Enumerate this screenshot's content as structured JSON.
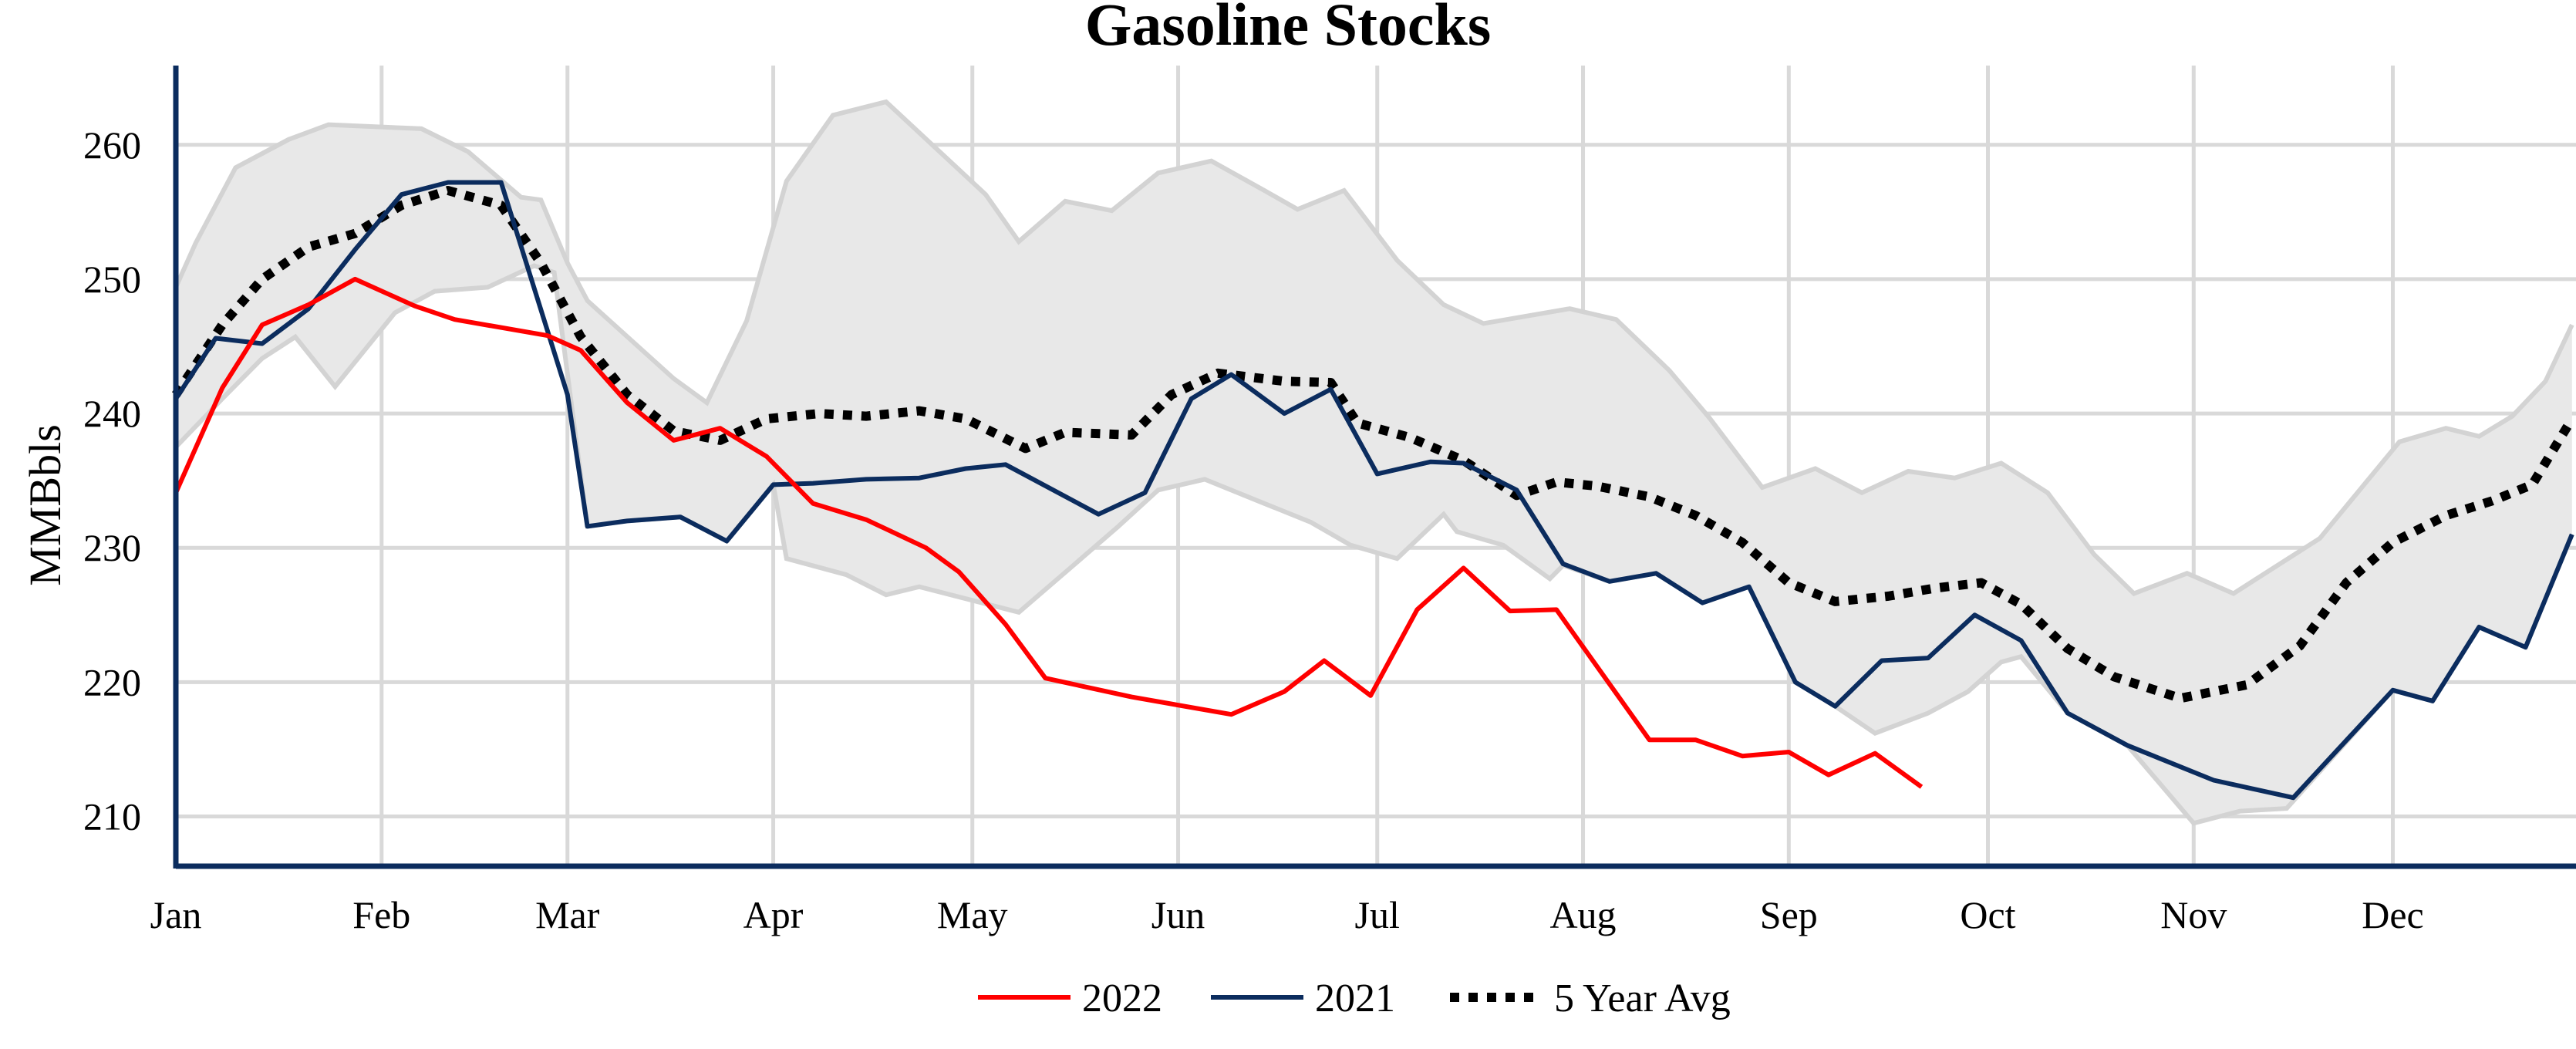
{
  "chart_data": {
    "type": "line",
    "title": "Gasoline Stocks",
    "xlabel": "",
    "ylabel": "MMBbls",
    "x_ticks": [
      "Jan",
      "Feb",
      "Mar",
      "Apr",
      "May",
      "Jun",
      "Jul",
      "Aug",
      "Sep",
      "Oct",
      "Nov",
      "Dec"
    ],
    "y_ticks": [
      210,
      220,
      230,
      240,
      250,
      260
    ],
    "ylim": [
      206.3,
      265.9
    ],
    "xlim": [
      "01-01",
      "12-28"
    ],
    "grid": true,
    "legend_position": "bottom",
    "colors": {
      "2022": "#ff0000",
      "2021": "#0b2c5e",
      "avg": "#000000",
      "band_fill": "#e8e8e8",
      "band_edge": "#d3d3d3",
      "grid": "#d9d9d9",
      "axis": "#0b2c5e"
    },
    "range_band": {
      "upper": [
        [
          "01-01",
          249.4
        ],
        [
          "01-04",
          252.7
        ],
        [
          "01-10",
          258.3
        ],
        [
          "01-18",
          260.4
        ],
        [
          "01-24",
          261.5
        ],
        [
          "02-07",
          261.2
        ],
        [
          "02-14",
          259.5
        ],
        [
          "02-22",
          256.1
        ],
        [
          "02-25",
          255.9
        ],
        [
          "03-01",
          251.2
        ],
        [
          "03-04",
          248.4
        ],
        [
          "03-17",
          242.6
        ],
        [
          "03-22",
          240.8
        ],
        [
          "03-28",
          246.9
        ],
        [
          "04-03",
          257.3
        ],
        [
          "04-10",
          262.2
        ],
        [
          "04-18",
          263.2
        ],
        [
          "05-03",
          256.3
        ],
        [
          "05-08",
          252.8
        ],
        [
          "05-15",
          255.8
        ],
        [
          "05-22",
          255.1
        ],
        [
          "05-29",
          257.9
        ],
        [
          "06-06",
          258.8
        ],
        [
          "06-14",
          256.6
        ],
        [
          "06-19",
          255.2
        ],
        [
          "06-26",
          256.6
        ],
        [
          "07-04",
          251.4
        ],
        [
          "07-11",
          248.1
        ],
        [
          "07-17",
          246.7
        ],
        [
          "07-30",
          247.8
        ],
        [
          "08-06",
          247.0
        ],
        [
          "08-14",
          243.2
        ],
        [
          "08-20",
          239.7
        ],
        [
          "08-28",
          234.5
        ],
        [
          "09-05",
          235.9
        ],
        [
          "09-12",
          234.1
        ],
        [
          "09-19",
          235.7
        ],
        [
          "09-26",
          235.2
        ],
        [
          "10-03",
          236.3
        ],
        [
          "10-10",
          234.1
        ],
        [
          "10-17",
          229.5
        ],
        [
          "10-23",
          226.6
        ],
        [
          "10-31",
          228.1
        ],
        [
          "11-07",
          226.6
        ],
        [
          "11-20",
          230.7
        ],
        [
          "12-02",
          237.9
        ],
        [
          "12-09",
          238.9
        ],
        [
          "12-14",
          238.3
        ],
        [
          "12-19",
          239.8
        ],
        [
          "12-24",
          242.4
        ],
        [
          "12-28",
          246.6
        ]
      ],
      "lower": [
        [
          "01-01",
          237.5
        ],
        [
          "01-08",
          241.1
        ],
        [
          "01-14",
          244.1
        ],
        [
          "01-19",
          245.7
        ],
        [
          "01-25",
          242.0
        ],
        [
          "02-03",
          247.5
        ],
        [
          "02-09",
          249.1
        ],
        [
          "02-17",
          249.4
        ],
        [
          "02-24",
          251.0
        ],
        [
          "02-27",
          250.5
        ],
        [
          "03-04",
          231.6
        ],
        [
          "03-10",
          232.0
        ],
        [
          "03-18",
          232.3
        ],
        [
          "03-25",
          230.5
        ],
        [
          "04-01",
          234.7
        ],
        [
          "04-03",
          229.2
        ],
        [
          "04-12",
          228.0
        ],
        [
          "04-18",
          226.5
        ],
        [
          "04-23",
          227.1
        ],
        [
          "05-08",
          225.2
        ],
        [
          "05-16",
          228.6
        ],
        [
          "05-23",
          231.6
        ],
        [
          "05-29",
          234.3
        ],
        [
          "06-05",
          235.1
        ],
        [
          "06-13",
          233.5
        ],
        [
          "06-21",
          231.9
        ],
        [
          "06-27",
          230.2
        ],
        [
          "07-04",
          229.2
        ],
        [
          "07-11",
          232.5
        ],
        [
          "07-13",
          231.2
        ],
        [
          "07-20",
          230.2
        ],
        [
          "07-27",
          227.7
        ],
        [
          "07-29",
          228.7
        ],
        [
          "08-05",
          227.5
        ],
        [
          "08-12",
          228.1
        ],
        [
          "08-19",
          225.9
        ],
        [
          "08-26",
          227.1
        ],
        [
          "09-02",
          220.0
        ],
        [
          "09-08",
          218.2
        ],
        [
          "09-14",
          216.2
        ],
        [
          "09-22",
          217.7
        ],
        [
          "09-28",
          219.3
        ],
        [
          "10-03",
          221.5
        ],
        [
          "10-06",
          221.9
        ],
        [
          "10-13",
          217.7
        ],
        [
          "10-22",
          215.3
        ],
        [
          "11-01",
          209.5
        ],
        [
          "11-08",
          210.4
        ],
        [
          "11-15",
          210.6
        ],
        [
          "12-01",
          219.4
        ],
        [
          "12-07",
          218.6
        ],
        [
          "12-14",
          224.1
        ],
        [
          "12-21",
          222.6
        ],
        [
          "12-28",
          231.0
        ]
      ]
    },
    "series": [
      {
        "name": "2022",
        "style": "solid",
        "points": [
          [
            "01-01",
            234.1
          ],
          [
            "01-08",
            241.9
          ],
          [
            "01-14",
            246.6
          ],
          [
            "01-21",
            248.1
          ],
          [
            "01-28",
            250.0
          ],
          [
            "02-06",
            248.0
          ],
          [
            "02-12",
            247.0
          ],
          [
            "02-26",
            245.8
          ],
          [
            "03-03",
            244.7
          ],
          [
            "03-10",
            240.8
          ],
          [
            "03-17",
            238.0
          ],
          [
            "03-24",
            238.9
          ],
          [
            "03-31",
            236.8
          ],
          [
            "04-07",
            233.3
          ],
          [
            "04-15",
            232.1
          ],
          [
            "04-24",
            230.0
          ],
          [
            "04-29",
            228.2
          ],
          [
            "05-06",
            224.3
          ],
          [
            "05-12",
            220.3
          ],
          [
            "05-25",
            218.9
          ],
          [
            "06-09",
            217.6
          ],
          [
            "06-17",
            219.3
          ],
          [
            "06-23",
            221.6
          ],
          [
            "06-30",
            219.0
          ],
          [
            "07-07",
            225.4
          ],
          [
            "07-14",
            228.5
          ],
          [
            "07-21",
            225.3
          ],
          [
            "07-28",
            225.4
          ],
          [
            "08-11",
            215.7
          ],
          [
            "08-18",
            215.7
          ],
          [
            "08-25",
            214.5
          ],
          [
            "09-01",
            214.8
          ],
          [
            "09-07",
            213.1
          ],
          [
            "09-14",
            214.7
          ],
          [
            "09-21",
            212.2
          ]
        ]
      },
      {
        "name": "2021",
        "style": "solid",
        "points": [
          [
            "01-01",
            241.1
          ],
          [
            "01-07",
            245.6
          ],
          [
            "01-14",
            245.2
          ],
          [
            "01-21",
            247.8
          ],
          [
            "01-28",
            252.2
          ],
          [
            "02-04",
            256.3
          ],
          [
            "02-11",
            257.2
          ],
          [
            "02-19",
            257.2
          ],
          [
            "03-01",
            241.4
          ],
          [
            "03-04",
            231.6
          ],
          [
            "03-10",
            232.0
          ],
          [
            "03-18",
            232.3
          ],
          [
            "03-25",
            230.5
          ],
          [
            "04-01",
            234.7
          ],
          [
            "04-07",
            234.8
          ],
          [
            "04-15",
            235.1
          ],
          [
            "04-23",
            235.2
          ],
          [
            "04-30",
            235.9
          ],
          [
            "05-06",
            236.2
          ],
          [
            "05-20",
            232.5
          ],
          [
            "05-27",
            234.1
          ],
          [
            "06-03",
            241.1
          ],
          [
            "06-09",
            242.9
          ],
          [
            "06-17",
            240.0
          ],
          [
            "06-24",
            241.8
          ],
          [
            "07-01",
            235.5
          ],
          [
            "07-09",
            236.4
          ],
          [
            "07-14",
            236.3
          ],
          [
            "07-22",
            234.3
          ],
          [
            "07-29",
            228.8
          ],
          [
            "08-05",
            227.5
          ],
          [
            "08-12",
            228.1
          ],
          [
            "08-19",
            225.9
          ],
          [
            "08-26",
            227.1
          ],
          [
            "09-02",
            220.0
          ],
          [
            "09-08",
            218.2
          ],
          [
            "09-15",
            221.6
          ],
          [
            "09-22",
            221.8
          ],
          [
            "09-29",
            225.0
          ],
          [
            "10-06",
            223.1
          ],
          [
            "10-13",
            217.7
          ],
          [
            "10-22",
            215.3
          ],
          [
            "11-04",
            212.7
          ],
          [
            "11-16",
            211.4
          ],
          [
            "12-01",
            219.4
          ],
          [
            "12-07",
            218.6
          ],
          [
            "12-14",
            224.1
          ],
          [
            "12-21",
            222.6
          ],
          [
            "12-28",
            231.0
          ]
        ]
      },
      {
        "name": "5 Year Avg",
        "style": "dotted",
        "points": [
          [
            "01-01",
            241.4
          ],
          [
            "01-08",
            246.6
          ],
          [
            "01-14",
            250.0
          ],
          [
            "01-21",
            252.4
          ],
          [
            "01-28",
            253.4
          ],
          [
            "02-04",
            255.5
          ],
          [
            "02-11",
            256.6
          ],
          [
            "02-19",
            255.5
          ],
          [
            "02-25",
            251.2
          ],
          [
            "03-03",
            245.7
          ],
          [
            "03-10",
            241.4
          ],
          [
            "03-17",
            238.7
          ],
          [
            "03-24",
            238.0
          ],
          [
            "03-31",
            239.6
          ],
          [
            "04-08",
            240.0
          ],
          [
            "04-15",
            239.8
          ],
          [
            "04-23",
            240.2
          ],
          [
            "04-30",
            239.6
          ],
          [
            "05-09",
            237.4
          ],
          [
            "05-15",
            238.6
          ],
          [
            "05-25",
            238.4
          ],
          [
            "05-31",
            241.4
          ],
          [
            "06-07",
            243.0
          ],
          [
            "06-17",
            242.4
          ],
          [
            "06-24",
            242.3
          ],
          [
            "06-28",
            239.3
          ],
          [
            "07-06",
            238.2
          ],
          [
            "07-14",
            236.5
          ],
          [
            "07-22",
            233.9
          ],
          [
            "07-28",
            234.9
          ],
          [
            "08-03",
            234.6
          ],
          [
            "08-11",
            233.8
          ],
          [
            "08-18",
            232.4
          ],
          [
            "08-25",
            230.4
          ],
          [
            "09-01",
            227.4
          ],
          [
            "09-08",
            226.0
          ],
          [
            "09-16",
            226.4
          ],
          [
            "09-23",
            227.0
          ],
          [
            "09-30",
            227.4
          ],
          [
            "10-06",
            225.8
          ],
          [
            "10-13",
            222.5
          ],
          [
            "10-20",
            220.4
          ],
          [
            "10-30",
            218.8
          ],
          [
            "11-09",
            219.8
          ],
          [
            "11-17",
            222.7
          ],
          [
            "11-24",
            227.4
          ],
          [
            "12-01",
            230.4
          ],
          [
            "12-09",
            232.4
          ],
          [
            "12-16",
            233.5
          ],
          [
            "12-22",
            234.7
          ],
          [
            "12-28",
            239.6
          ]
        ]
      }
    ]
  }
}
